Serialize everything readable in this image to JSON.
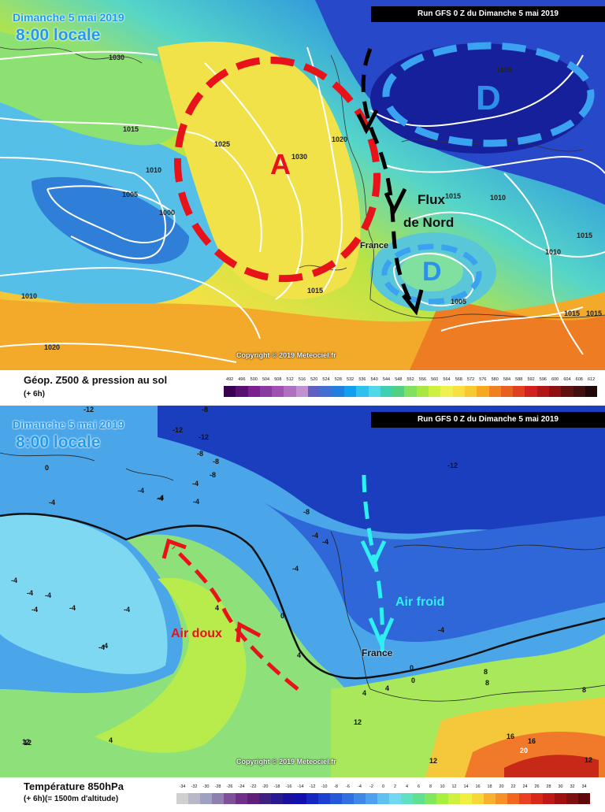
{
  "top_panel": {
    "date": "Dimanche 5 mai 2019",
    "time": "8:00 locale",
    "run": "Run GFS 0 Z du Dimanche 5 mai 2019",
    "copyright": "Copyright © 2019 Meteociel.fr",
    "high_label": "A",
    "low_label_north": "D",
    "low_label_france": "D",
    "flow_label_line1": "Flux",
    "flow_label_line2": "de Nord",
    "country_label": "France",
    "isobars": [
      "1030",
      "1015",
      "1010",
      "1005",
      "1000",
      "1010",
      "1020",
      "1025",
      "1030",
      "1020",
      "1015",
      "1005",
      "1015",
      "1010",
      "1015",
      "1010",
      "1005",
      "1015",
      "1015"
    ],
    "legend_title": "Géop. Z500 & pression au sol",
    "legend_sub": "(+ 6h)",
    "scale_values": [
      "492",
      "496",
      "500",
      "504",
      "508",
      "512",
      "516",
      "520",
      "524",
      "528",
      "532",
      "536",
      "540",
      "544",
      "548",
      "552",
      "556",
      "560",
      "564",
      "568",
      "572",
      "576",
      "580",
      "584",
      "588",
      "592",
      "596",
      "600",
      "604",
      "608",
      "612"
    ],
    "scale_colors": [
      "#3a0050",
      "#5a1070",
      "#7a2090",
      "#8a3aa0",
      "#a050b0",
      "#b070c0",
      "#c090d0",
      "#6060c0",
      "#4070d0",
      "#2080e0",
      "#10a0f0",
      "#30c0f0",
      "#50d8e8",
      "#40d0b0",
      "#50d080",
      "#80e060",
      "#a8e840",
      "#d0f040",
      "#f0f050",
      "#f8e040",
      "#f8c830",
      "#f8a820",
      "#f08020",
      "#e86020",
      "#e04020",
      "#d02020",
      "#b01818",
      "#901010",
      "#601010",
      "#401010",
      "#200808"
    ]
  },
  "bottom_panel": {
    "date": "Dimanche 5 mai 2019",
    "time": "8:00 locale",
    "run": "Run GFS 0 Z du Dimanche 5 mai 2019",
    "copyright": "Copyright © 2019 Meteociel.fr",
    "warm_air_label": "Air doux",
    "cold_air_label": "Air froid",
    "country_label": "France",
    "temp_labels": [
      "-12",
      "-8",
      "-12",
      "-12",
      "-8",
      "-8",
      "-8",
      "-4",
      "-4",
      "-4",
      "-4",
      "0",
      "-4",
      "-8",
      "-4",
      "-4",
      "-4",
      "-4",
      "-4",
      "-4",
      "-4",
      "-4",
      "-4",
      "4",
      "0",
      "4",
      "4",
      "-4",
      "0",
      "4",
      "12",
      "4",
      "8",
      "12",
      "12",
      "12",
      "16",
      "16",
      "20",
      "-12",
      "-4",
      "-4",
      "-4",
      "8",
      "0",
      "8",
      "12"
    ],
    "legend_title": "Température 850hPa",
    "legend_sub": "(+ 6h)(= 1500m d'altitude)",
    "scale_values": [
      "-34",
      "-32",
      "-30",
      "-28",
      "-26",
      "-24",
      "-22",
      "-20",
      "-18",
      "-16",
      "-14",
      "-12",
      "-10",
      "-8",
      "-6",
      "-4",
      "-2",
      "0",
      "2",
      "4",
      "6",
      "8",
      "10",
      "12",
      "14",
      "16",
      "18",
      "20",
      "22",
      "24",
      "26",
      "28",
      "30",
      "32",
      "34"
    ],
    "scale_colors": [
      "#d0d0d0",
      "#b8b8c8",
      "#a0a0c0",
      "#9080b0",
      "#805098",
      "#703088",
      "#602078",
      "#402080",
      "#2a1a90",
      "#1a10a0",
      "#1010b0",
      "#1428c0",
      "#1c40d0",
      "#2458d8",
      "#3070e0",
      "#4088e8",
      "#50a0f0",
      "#60c0f0",
      "#70d8f0",
      "#60e0c0",
      "#60e090",
      "#80e860",
      "#a8f040",
      "#d0f040",
      "#f0f040",
      "#f8d838",
      "#f8b030",
      "#f89028",
      "#f06820",
      "#e84020",
      "#d82818",
      "#c01818",
      "#a01010",
      "#801010",
      "#600808"
    ]
  }
}
